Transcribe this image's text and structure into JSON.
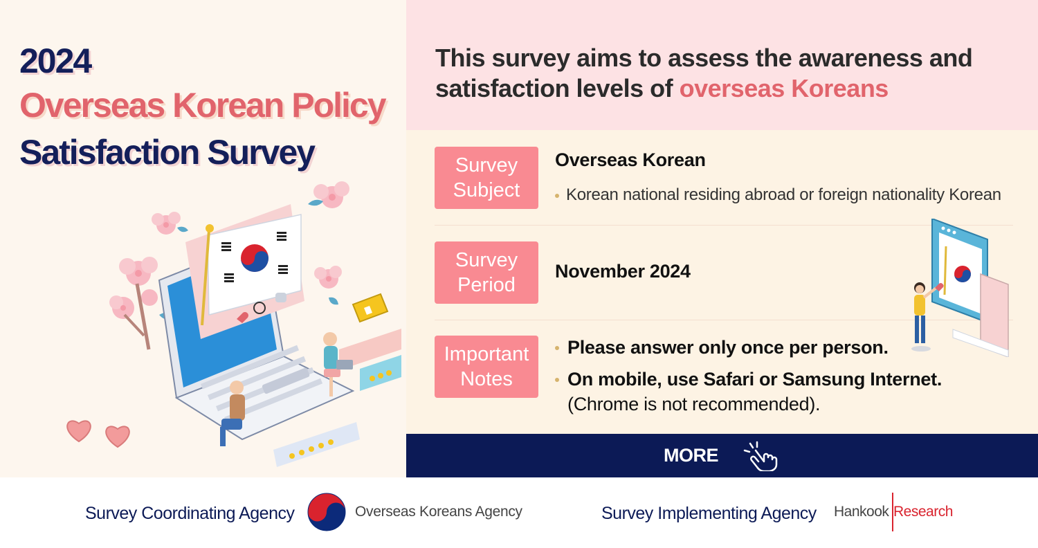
{
  "title": {
    "year": "2024",
    "line2": "Overseas Korean Policy",
    "line3": "Satisfaction Survey"
  },
  "headline": {
    "line1": "This survey aims to assess the awareness and",
    "line2_prefix": "satisfaction levels of ",
    "line2_accent": "overseas Koreans"
  },
  "rows": {
    "subject": {
      "label_line1": "Survey",
      "label_line2": "Subject",
      "main": "Overseas Korean",
      "bullet": "Korean national residing abroad or foreign nationality Korean"
    },
    "period": {
      "label_line1": "Survey",
      "label_line2": "Period",
      "main": "November 2024"
    },
    "notes": {
      "label_line1": "Important",
      "label_line2": "Notes",
      "note1": "Please answer only once per person.",
      "note2": "On mobile, use Safari or Samsung Internet.",
      "note2_sub": "(Chrome is not recommended)."
    }
  },
  "more_button": {
    "label": "MORE",
    "icon": "pointer-click-icon"
  },
  "footer": {
    "coordinating_label": "Survey Coordinating Agency",
    "coordinating_agency": "Overseas Koreans Agency",
    "implementing_label": "Survey Implementing Agency",
    "implementing_logo_part1": "Hankook",
    "implementing_logo_part2": "Research"
  },
  "colors": {
    "navy": "#0c1a56",
    "accent_pink": "#e1646c",
    "label_pink": "#f98a92",
    "header_band": "#fde2e4",
    "info_bg": "#fdf3e4",
    "left_bg": "#fdf6ee"
  }
}
